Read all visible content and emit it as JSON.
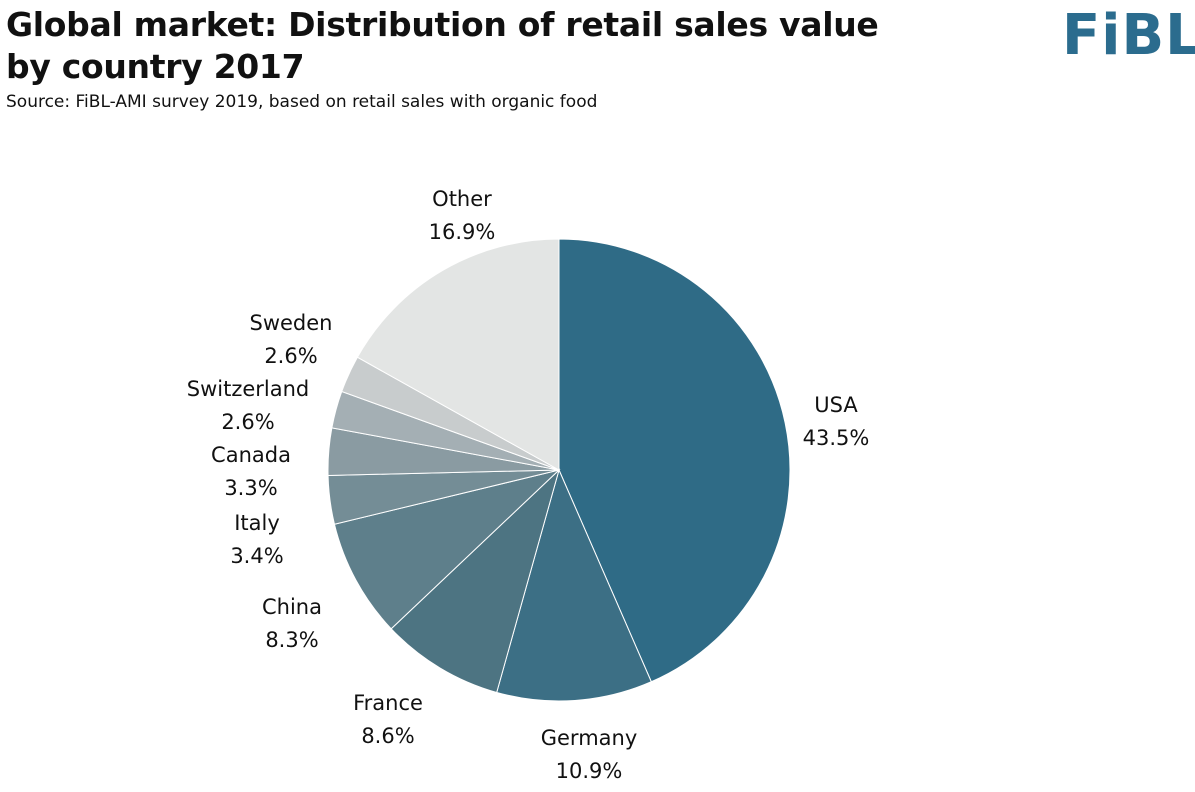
{
  "header": {
    "title": "Global market: Distribution of retail sales value by country 2017",
    "subtitle": "Source: FiBL-AMI survey 2019, based on retail sales with organic food",
    "logo": "FiBL"
  },
  "colors": {
    "logo": "#2b6c8e",
    "slice_border": "#ffffff"
  },
  "chart_data": {
    "type": "pie",
    "title": "Global market: Distribution of retail sales value by country 2017",
    "unit": "%",
    "start_angle_deg": 0,
    "direction": "clockwise",
    "slices": [
      {
        "label": "USA",
        "value": 43.5,
        "display": "43.5%",
        "color": "#2f6b86"
      },
      {
        "label": "Germany",
        "value": 10.9,
        "display": "10.9%",
        "color": "#3c6f85"
      },
      {
        "label": "France",
        "value": 8.6,
        "display": "8.6%",
        "color": "#4d7482"
      },
      {
        "label": "China",
        "value": 8.3,
        "display": "8.3%",
        "color": "#5e7f8b"
      },
      {
        "label": "Italy",
        "value": 3.4,
        "display": "3.4%",
        "color": "#748d96"
      },
      {
        "label": "Canada",
        "value": 3.3,
        "display": "3.3%",
        "color": "#8a9ba2"
      },
      {
        "label": "Switzerland",
        "value": 2.6,
        "display": "2.6%",
        "color": "#a4afb4"
      },
      {
        "label": "Sweden",
        "value": 2.6,
        "display": "2.6%",
        "color": "#c8cccd"
      },
      {
        "label": "Other",
        "value": 16.9,
        "display": "16.9%",
        "color": "#e3e5e4"
      }
    ]
  }
}
